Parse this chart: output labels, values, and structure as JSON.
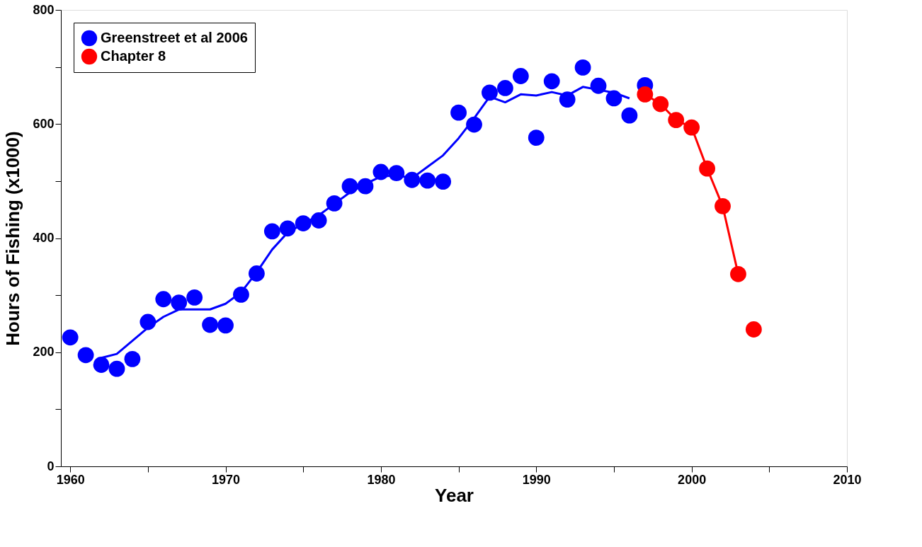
{
  "chart_data": {
    "type": "scatter",
    "xlabel": "Year",
    "ylabel": "Hours of Fishing (x1000)",
    "xlim": [
      1959.4,
      2010
    ],
    "ylim": [
      0,
      800
    ],
    "xticks": [
      1960,
      {
        "value": 1965,
        "label": null
      },
      1970,
      {
        "value": 1975,
        "label": null
      },
      1980,
      {
        "value": 1985,
        "label": null
      },
      1990,
      {
        "value": 1995,
        "label": null
      },
      2000,
      {
        "value": 2005,
        "label": null
      },
      2010
    ],
    "yticks": [
      0,
      {
        "value": 100,
        "label": null
      },
      200,
      {
        "value": 300,
        "label": null
      },
      400,
      {
        "value": 500,
        "label": null
      },
      600,
      {
        "value": 700,
        "label": null
      },
      800
    ],
    "grid": false,
    "legend": "top left",
    "marker": "circle",
    "series": [
      {
        "name": "Greenstreet et al 2006",
        "color": "#0000ff",
        "x": [
          1960,
          1961,
          1962,
          1963,
          1964,
          1965,
          1966,
          1967,
          1968,
          1969,
          1970,
          1971,
          1972,
          1973,
          1974,
          1975,
          1976,
          1977,
          1978,
          1979,
          1980,
          1981,
          1982,
          1983,
          1984,
          1985,
          1986,
          1987,
          1988,
          1989,
          1990,
          1991,
          1992,
          1993,
          1994,
          1995,
          1996,
          1997
        ],
        "values": [
          226,
          195,
          178,
          171,
          188,
          253,
          293,
          287,
          296,
          248,
          247,
          301,
          338,
          412,
          417,
          426,
          431,
          461,
          491,
          491,
          516,
          514,
          502,
          501,
          499,
          620,
          599,
          655,
          663,
          684,
          576,
          675,
          643,
          699,
          667,
          645,
          615,
          668
        ]
      },
      {
        "type": "line",
        "color": "#0000ff",
        "line_style": "solid",
        "marker": "none",
        "x": [
          1962,
          1963,
          1964,
          1965,
          1966,
          1967,
          1968,
          1969,
          1970,
          1971,
          1972,
          1973,
          1974,
          1975,
          1976,
          1977,
          1978,
          1979,
          1980,
          1981,
          1982,
          1983,
          1984,
          1985,
          1986,
          1987,
          1988,
          1989,
          1990,
          1991,
          1992,
          1993,
          1994,
          1995,
          1996
        ],
        "values": [
          190,
          197,
          220,
          243,
          262,
          275,
          275,
          275,
          285,
          305,
          340,
          380,
          410,
          425,
          440,
          460,
          480,
          495,
          508,
          510,
          505,
          525,
          545,
          575,
          610,
          648,
          638,
          652,
          650,
          656,
          650,
          665,
          660,
          655,
          645
        ]
      },
      {
        "name": "Chapter 8",
        "color": "#ff0000",
        "x": [
          1997,
          1998,
          1999,
          2000,
          2001,
          2002,
          2003,
          2004
        ],
        "values": [
          652,
          635,
          607,
          594,
          522,
          456,
          337,
          240
        ]
      },
      {
        "type": "line",
        "color": "#ff0000",
        "line_style": "solid",
        "marker": "none",
        "x": [
          1997,
          1998,
          1999,
          2000,
          2001,
          2002,
          2003
        ],
        "values": [
          652,
          635,
          607,
          594,
          522,
          456,
          337
        ]
      }
    ]
  }
}
